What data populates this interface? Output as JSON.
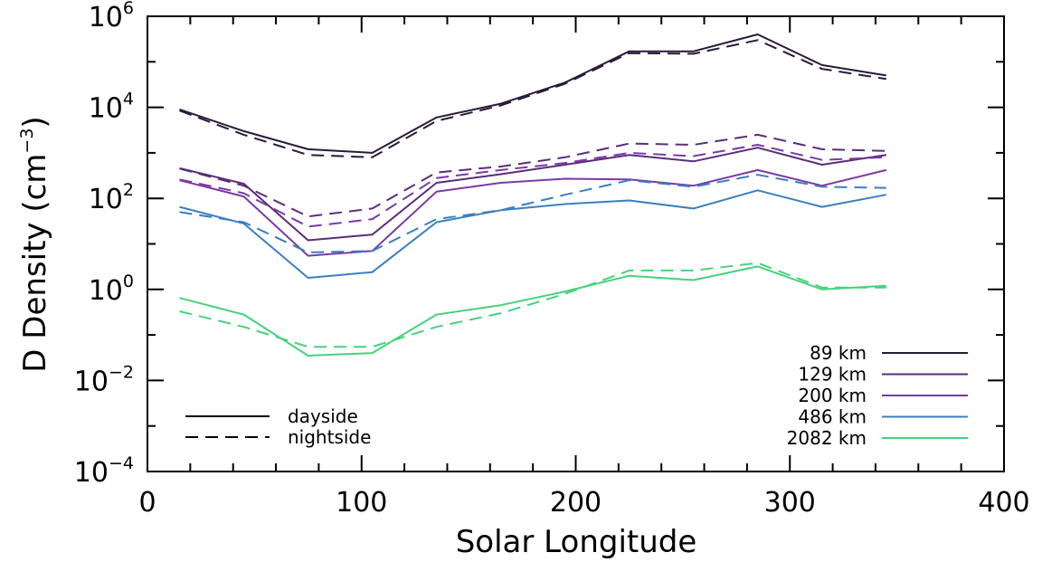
{
  "chart_data": {
    "type": "line",
    "xlabel": "Solar Longitude",
    "ylabel": {
      "prefix": "D Density (cm",
      "exponent": "−3",
      "suffix": ")"
    },
    "xlim": [
      0,
      400
    ],
    "ylim": [
      0.0001,
      1000000
    ],
    "yscale": "log",
    "x_ticks": [
      "0",
      "100",
      "200",
      "300",
      "400"
    ],
    "y_ticks": [
      {
        "base": "10",
        "exp": "−4",
        "value": 0.0001
      },
      {
        "base": "10",
        "exp": "−2",
        "value": 0.01
      },
      {
        "base": "10",
        "exp": "0",
        "value": 1
      },
      {
        "base": "10",
        "exp": "2",
        "value": 100
      },
      {
        "base": "10",
        "exp": "4",
        "value": 10000
      },
      {
        "base": "10",
        "exp": "6",
        "value": 1000000
      }
    ],
    "grid": false,
    "x": [
      15,
      45,
      75,
      105,
      135,
      165,
      195,
      225,
      255,
      285,
      315,
      345
    ],
    "series": [
      {
        "name": "89 km",
        "color": "#2a1a3a",
        "dayside": [
          9000,
          3000,
          1200,
          1000,
          6000,
          12000,
          35000,
          170000,
          170000,
          400000,
          85000,
          50000
        ],
        "nightside": [
          8500,
          2500,
          900,
          800,
          5000,
          11000,
          33000,
          155000,
          150000,
          300000,
          70000,
          42000
        ]
      },
      {
        "name": "129 km",
        "color": "#5a2d7a",
        "dayside": [
          460,
          210,
          12,
          16,
          220,
          340,
          550,
          900,
          650,
          1300,
          550,
          900
        ],
        "nightside": [
          450,
          190,
          40,
          60,
          370,
          500,
          800,
          1600,
          1500,
          2500,
          1200,
          1100
        ]
      },
      {
        "name": "200 km",
        "color": "#7a3aa6",
        "dayside": [
          250,
          110,
          5.5,
          7,
          140,
          220,
          270,
          260,
          190,
          420,
          190,
          420
        ],
        "nightside": [
          260,
          130,
          24,
          35,
          280,
          420,
          600,
          1000,
          850,
          1500,
          700,
          800
        ]
      },
      {
        "name": "486 km",
        "color": "#3a7fc1",
        "dayside": [
          65,
          28,
          1.8,
          2.4,
          30,
          55,
          75,
          90,
          60,
          150,
          65,
          120
        ],
        "nightside": [
          50,
          30,
          6.5,
          7,
          35,
          55,
          120,
          250,
          180,
          330,
          180,
          170
        ]
      },
      {
        "name": "2082 km",
        "color": "#47d27d",
        "dayside": [
          0.65,
          0.28,
          0.035,
          0.04,
          0.28,
          0.45,
          0.9,
          2.0,
          1.6,
          3.2,
          1.0,
          1.2
        ],
        "nightside": [
          0.33,
          0.15,
          0.055,
          0.055,
          0.15,
          0.3,
          0.8,
          2.6,
          2.6,
          3.8,
          1.1,
          1.1
        ]
      }
    ],
    "style_legend": [
      {
        "label": "dayside",
        "dash": "solid"
      },
      {
        "label": "nightside",
        "dash": "dashed"
      }
    ],
    "legend_placement": "bottom-right (series), bottom-left (line styles)"
  }
}
